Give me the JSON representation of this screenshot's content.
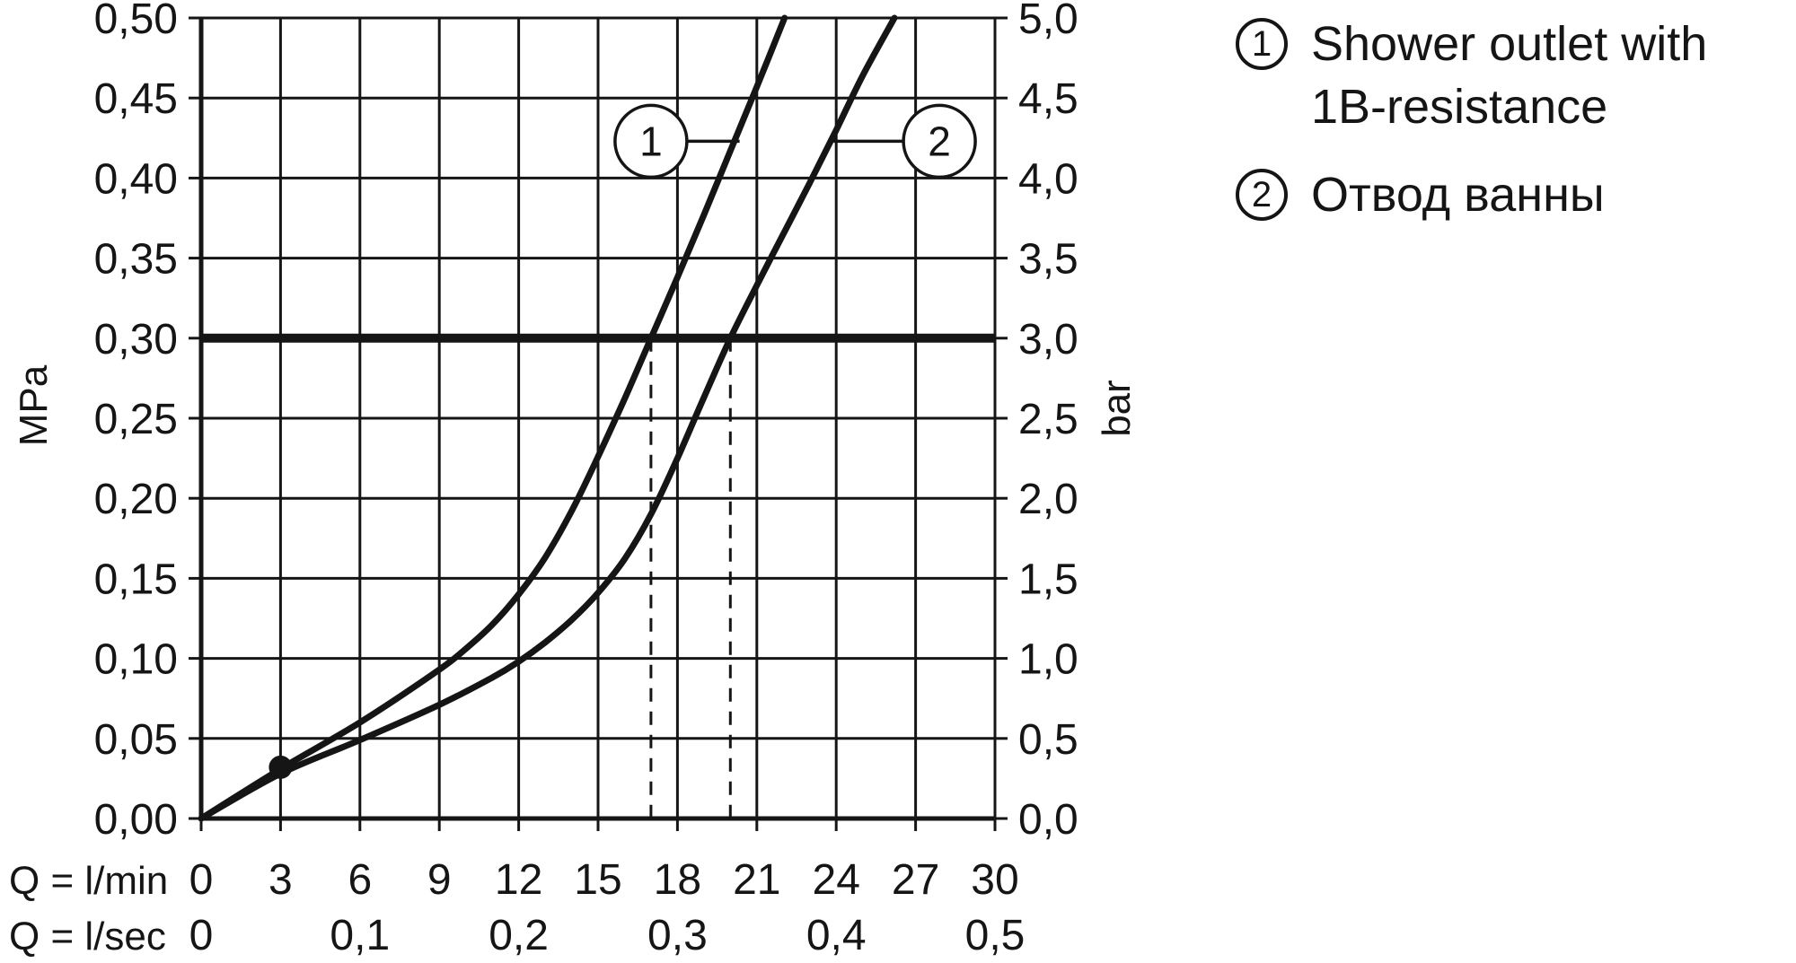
{
  "page": {
    "background": "#ffffff"
  },
  "colors": {
    "ink": "#151515",
    "background": "#ffffff"
  },
  "chart_data": {
    "type": "line",
    "x_axis": {
      "range_lmin": [
        0,
        30
      ],
      "row1_label": "Q = l/min",
      "row2_label": "Q = l/sec",
      "ticks_lmin": [
        {
          "v": 0,
          "t": "0"
        },
        {
          "v": 3,
          "t": "3"
        },
        {
          "v": 6,
          "t": "6"
        },
        {
          "v": 9,
          "t": "9"
        },
        {
          "v": 12,
          "t": "12"
        },
        {
          "v": 15,
          "t": "15"
        },
        {
          "v": 18,
          "t": "18"
        },
        {
          "v": 21,
          "t": "21"
        },
        {
          "v": 24,
          "t": "24"
        },
        {
          "v": 27,
          "t": "27"
        },
        {
          "v": 30,
          "t": "30"
        }
      ],
      "ticks_lsec": [
        {
          "v": 0,
          "t": "0"
        },
        {
          "v": 6,
          "t": "0,1"
        },
        {
          "v": 12,
          "t": "0,2"
        },
        {
          "v": 18,
          "t": "0,3"
        },
        {
          "v": 24,
          "t": "0,4"
        },
        {
          "v": 30,
          "t": "0,5"
        }
      ]
    },
    "y_axis_left": {
      "unit": "MPa",
      "range_mpa": [
        0,
        0.5
      ],
      "ticks": [
        {
          "v": 0.0,
          "t": "0,00"
        },
        {
          "v": 0.05,
          "t": "0,05"
        },
        {
          "v": 0.1,
          "t": "0,10"
        },
        {
          "v": 0.15,
          "t": "0,15"
        },
        {
          "v": 0.2,
          "t": "0,20"
        },
        {
          "v": 0.25,
          "t": "0,25"
        },
        {
          "v": 0.3,
          "t": "0,30"
        },
        {
          "v": 0.35,
          "t": "0,35"
        },
        {
          "v": 0.4,
          "t": "0,40"
        },
        {
          "v": 0.45,
          "t": "0,45"
        },
        {
          "v": 0.5,
          "t": "0,50"
        }
      ]
    },
    "y_axis_right": {
      "unit": "bar",
      "ticks": [
        {
          "v_mpa": 0.0,
          "t": "0,0"
        },
        {
          "v_mpa": 0.05,
          "t": "0,5"
        },
        {
          "v_mpa": 0.1,
          "t": "1,0"
        },
        {
          "v_mpa": 0.15,
          "t": "1,5"
        },
        {
          "v_mpa": 0.2,
          "t": "2,0"
        },
        {
          "v_mpa": 0.25,
          "t": "2,5"
        },
        {
          "v_mpa": 0.3,
          "t": "3,0"
        },
        {
          "v_mpa": 0.35,
          "t": "3,5"
        },
        {
          "v_mpa": 0.4,
          "t": "4,0"
        },
        {
          "v_mpa": 0.45,
          "t": "4,5"
        },
        {
          "v_mpa": 0.5,
          "t": "5,0"
        }
      ]
    },
    "series": [
      {
        "id": "1",
        "name": "Shower outlet with 1B-resistance",
        "points": [
          [
            0,
            0
          ],
          [
            3,
            0.031
          ],
          [
            6,
            0.06
          ],
          [
            9,
            0.093
          ],
          [
            10,
            0.106
          ],
          [
            11,
            0.121
          ],
          [
            12,
            0.14
          ],
          [
            13,
            0.163
          ],
          [
            14,
            0.192
          ],
          [
            15,
            0.226
          ],
          [
            16,
            0.262
          ],
          [
            17,
            0.3
          ],
          [
            18,
            0.338
          ],
          [
            19,
            0.377
          ],
          [
            20,
            0.417
          ],
          [
            21,
            0.457
          ],
          [
            22.05,
            0.5
          ]
        ]
      },
      {
        "id": "2",
        "name": "Отвод ванны",
        "points": [
          [
            0,
            0
          ],
          [
            3,
            0.028
          ],
          [
            6,
            0.049
          ],
          [
            9,
            0.071
          ],
          [
            11,
            0.088
          ],
          [
            12,
            0.098
          ],
          [
            13,
            0.11
          ],
          [
            14,
            0.124
          ],
          [
            15,
            0.141
          ],
          [
            16,
            0.162
          ],
          [
            17,
            0.19
          ],
          [
            18,
            0.225
          ],
          [
            19,
            0.263
          ],
          [
            20,
            0.3
          ],
          [
            21,
            0.333
          ],
          [
            22,
            0.365
          ],
          [
            23,
            0.397
          ],
          [
            24,
            0.43
          ],
          [
            25,
            0.464
          ],
          [
            26.2,
            0.5
          ]
        ]
      }
    ],
    "reference_line_mpa": 0.3,
    "dashed_guides_lmin": [
      17,
      20
    ],
    "marker_point": {
      "lmin": 3,
      "mpa": 0.032
    },
    "callouts": [
      {
        "label": "1",
        "cx_lmin": 17.0,
        "cy_mpa": 0.423,
        "attach_lmin": 20.35
      },
      {
        "label": "2",
        "cx_lmin": 27.9,
        "cy_mpa": 0.423,
        "attach_lmin": 23.9
      }
    ]
  },
  "legend": {
    "items": [
      {
        "num": "1",
        "text": "Shower outlet with 1B-resistance"
      },
      {
        "num": "2",
        "text": "Отвод ванны"
      }
    ]
  }
}
